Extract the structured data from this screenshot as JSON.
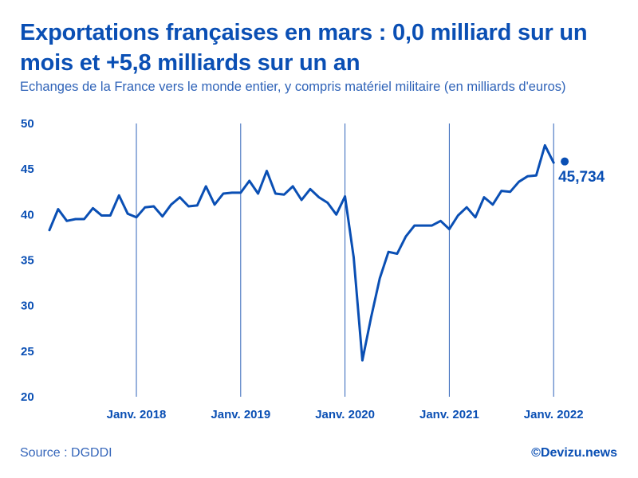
{
  "header": {
    "title": "Exportations françaises en mars : 0,0 milliard sur un mois et +5,8 milliards sur un an",
    "subtitle": "Echanges de la France vers le monde entier, y compris matériel militaire (en milliards d'euros)"
  },
  "footer": {
    "source": "Source : DGDDI",
    "brand": "©Devizu.news"
  },
  "colors": {
    "line": "#0a4fb4",
    "grid": "#2f63b8",
    "text": "#0a4fb4"
  },
  "chart_data": {
    "type": "line",
    "title": "Exportations françaises en mars : 0,0 milliard sur un mois et +5,8 milliards sur un an",
    "ylabel": "milliards d'euros",
    "ylim": [
      20,
      50
    ],
    "yticks": [
      "20",
      "25",
      "30",
      "35",
      "40",
      "45",
      "50"
    ],
    "xticks": [
      "Janv. 2018",
      "Janv. 2019",
      "Janv. 2020",
      "Janv. 2021",
      "Janv. 2022"
    ],
    "start": "2017-03",
    "end_label": "45,734",
    "series": [
      {
        "name": "Exportations",
        "values": [
          38.3,
          40.6,
          39.3,
          39.5,
          39.5,
          40.7,
          39.9,
          39.9,
          42.1,
          40.1,
          39.7,
          40.8,
          40.9,
          39.8,
          41.1,
          41.9,
          40.9,
          41.0,
          43.1,
          41.1,
          42.3,
          42.4,
          42.4,
          43.7,
          42.3,
          44.8,
          42.3,
          42.2,
          43.1,
          41.6,
          42.8,
          41.9,
          41.3,
          40.0,
          42.0,
          35.3,
          24.0,
          28.7,
          33.0,
          35.9,
          35.7,
          37.6,
          38.8,
          38.8,
          38.8,
          39.3,
          38.4,
          39.9,
          40.8,
          39.7,
          41.9,
          41.1,
          42.6,
          42.5,
          43.6,
          44.2,
          44.3,
          47.6,
          45.7,
          45.7
        ]
      }
    ]
  }
}
